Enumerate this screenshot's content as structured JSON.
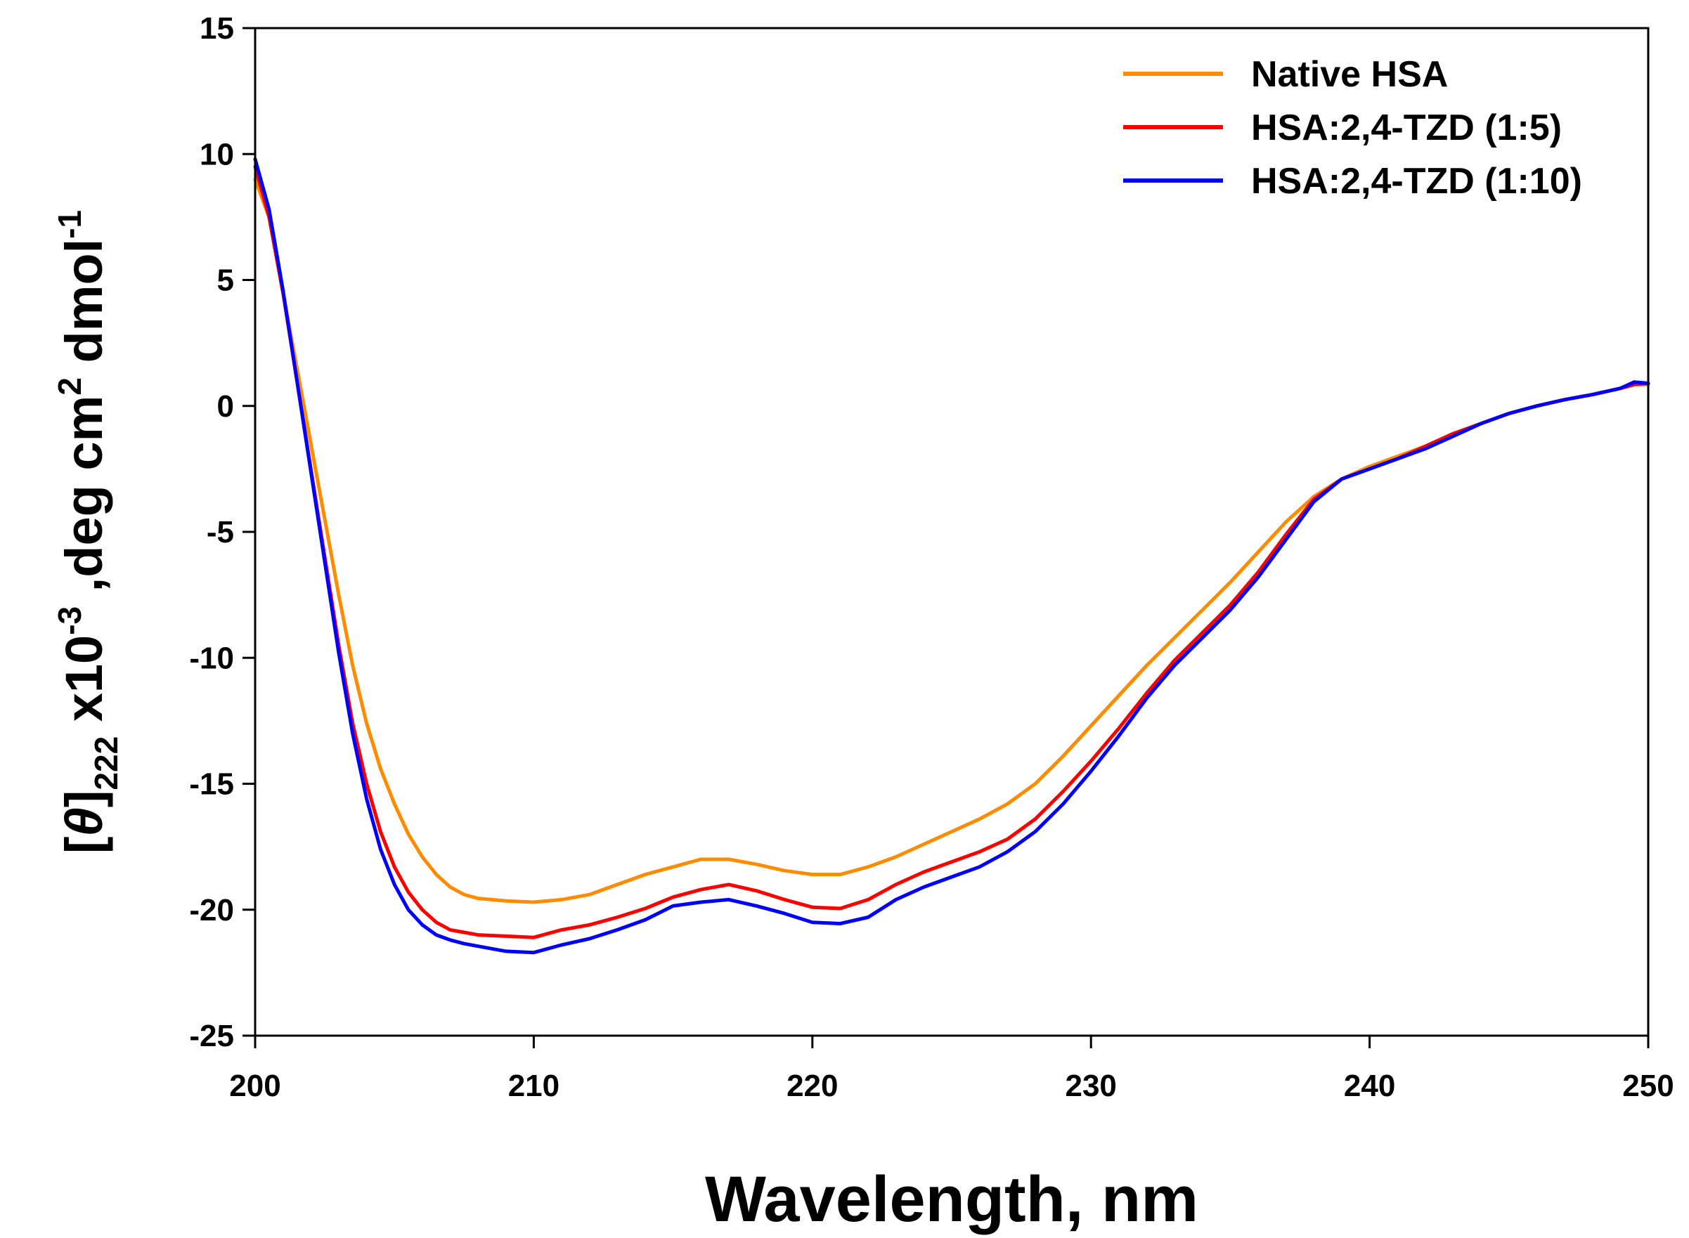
{
  "chart_data": {
    "type": "line",
    "xlabel": "Wavelength, nm",
    "ylabel": {
      "parts": [
        "[",
        "θ",
        "]",
        "222",
        " x10",
        "-3",
        " ,deg cm",
        "2",
        " dmol",
        "-1"
      ]
    },
    "xlim": [
      200,
      250
    ],
    "ylim": [
      -25,
      15
    ],
    "xticks": [
      200,
      210,
      220,
      230,
      240,
      250
    ],
    "yticks": [
      15,
      10,
      5,
      0,
      -5,
      -10,
      -15,
      -20,
      -25
    ],
    "legend_position": "top-right",
    "series": [
      {
        "name": "Native HSA",
        "color": "#FF8C00",
        "x": [
          200,
          200.5,
          201,
          201.5,
          202,
          202.5,
          203,
          203.5,
          204,
          204.5,
          205,
          205.5,
          206,
          206.5,
          207,
          207.5,
          208,
          209,
          210,
          211,
          212,
          213,
          214,
          215,
          216,
          217,
          218,
          219,
          220,
          221,
          222,
          223,
          224,
          225,
          226,
          227,
          228,
          229,
          230,
          231,
          232,
          233,
          234,
          235,
          236,
          237,
          238,
          239,
          240,
          241,
          242,
          243,
          244,
          245,
          246,
          247,
          248,
          249,
          249.5,
          250
        ],
        "values": [
          9.0,
          7.5,
          4.5,
          1.5,
          -1.5,
          -4.5,
          -7.5,
          -10.3,
          -12.6,
          -14.4,
          -15.8,
          -17.0,
          -17.9,
          -18.6,
          -19.1,
          -19.4,
          -19.55,
          -19.65,
          -19.7,
          -19.6,
          -19.4,
          -19.0,
          -18.6,
          -18.3,
          -18.0,
          -18.0,
          -18.2,
          -18.45,
          -18.6,
          -18.6,
          -18.3,
          -17.9,
          -17.4,
          -16.9,
          -16.4,
          -15.8,
          -15.0,
          -13.9,
          -12.7,
          -11.5,
          -10.3,
          -9.2,
          -8.1,
          -7.0,
          -5.8,
          -4.6,
          -3.6,
          -2.9,
          -2.4,
          -2.0,
          -1.6,
          -1.1,
          -0.7,
          -0.3,
          0.0,
          0.25,
          0.45,
          0.7,
          0.85,
          0.85
        ]
      },
      {
        "name": "HSA:2,4-TZD (1:5)",
        "color": "#FF0000",
        "x": [
          200,
          200.5,
          201,
          201.5,
          202,
          202.5,
          203,
          203.5,
          204,
          204.5,
          205,
          205.5,
          206,
          206.5,
          207,
          207.5,
          208,
          209,
          210,
          211,
          212,
          213,
          214,
          215,
          216,
          217,
          218,
          219,
          220,
          221,
          222,
          223,
          224,
          225,
          226,
          227,
          228,
          229,
          230,
          231,
          232,
          233,
          234,
          235,
          236,
          237,
          238,
          239,
          240,
          241,
          242,
          243,
          244,
          245,
          246,
          247,
          248,
          249,
          249.5,
          250
        ],
        "values": [
          9.5,
          7.5,
          4.5,
          1.0,
          -2.5,
          -6.0,
          -9.5,
          -12.6,
          -15.0,
          -16.9,
          -18.3,
          -19.3,
          -20.0,
          -20.5,
          -20.8,
          -20.9,
          -21.0,
          -21.05,
          -21.1,
          -20.8,
          -20.6,
          -20.3,
          -19.95,
          -19.5,
          -19.2,
          -19.0,
          -19.25,
          -19.6,
          -19.9,
          -19.95,
          -19.6,
          -19.0,
          -18.5,
          -18.1,
          -17.7,
          -17.2,
          -16.4,
          -15.3,
          -14.1,
          -12.8,
          -11.4,
          -10.1,
          -9.0,
          -7.9,
          -6.6,
          -5.1,
          -3.7,
          -2.9,
          -2.5,
          -2.1,
          -1.6,
          -1.1,
          -0.7,
          -0.3,
          0.0,
          0.25,
          0.45,
          0.7,
          0.85,
          0.9
        ]
      },
      {
        "name": "HSA:2,4-TZD (1:10)",
        "color": "#0000FF",
        "x": [
          200,
          200.5,
          201,
          201.5,
          202,
          202.5,
          203,
          203.5,
          204,
          204.5,
          205,
          205.5,
          206,
          206.5,
          207,
          207.5,
          208,
          209,
          210,
          211,
          212,
          213,
          214,
          215,
          216,
          217,
          218,
          219,
          220,
          221,
          222,
          223,
          224,
          225,
          226,
          227,
          228,
          229,
          230,
          231,
          232,
          233,
          234,
          235,
          236,
          237,
          238,
          239,
          240,
          241,
          242,
          243,
          244,
          245,
          246,
          247,
          248,
          249,
          249.5,
          250
        ],
        "values": [
          9.8,
          7.8,
          4.6,
          1.0,
          -2.6,
          -6.2,
          -9.8,
          -13.0,
          -15.6,
          -17.6,
          -19.0,
          -20.0,
          -20.6,
          -21.0,
          -21.2,
          -21.35,
          -21.45,
          -21.65,
          -21.7,
          -21.4,
          -21.15,
          -20.8,
          -20.4,
          -19.85,
          -19.7,
          -19.6,
          -19.85,
          -20.15,
          -20.5,
          -20.55,
          -20.3,
          -19.6,
          -19.1,
          -18.7,
          -18.3,
          -17.7,
          -16.9,
          -15.8,
          -14.5,
          -13.1,
          -11.6,
          -10.3,
          -9.2,
          -8.1,
          -6.8,
          -5.3,
          -3.8,
          -2.9,
          -2.5,
          -2.1,
          -1.7,
          -1.2,
          -0.7,
          -0.3,
          0.0,
          0.25,
          0.45,
          0.7,
          0.95,
          0.9
        ]
      }
    ]
  }
}
